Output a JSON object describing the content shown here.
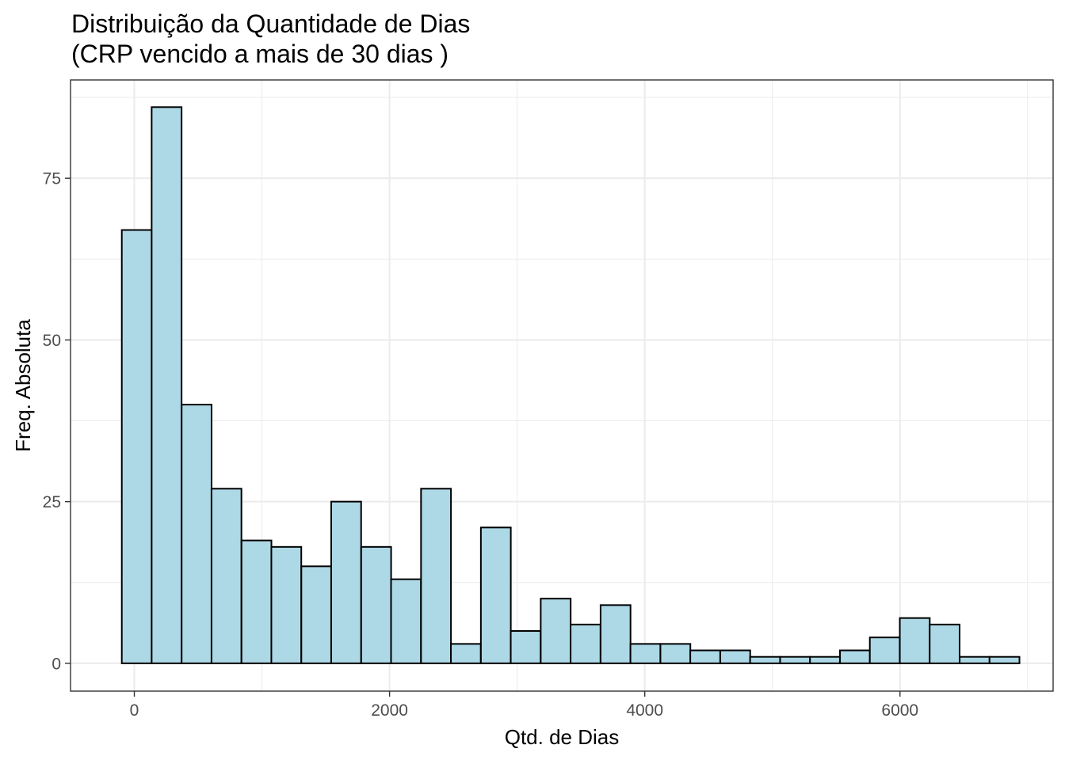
{
  "chart_data": {
    "type": "bar",
    "title": "Distribuição da Quantidade de Dias",
    "subtitle": "(CRP vencido a mais de 30 dias )",
    "xlabel": "Qtd. de Dias",
    "ylabel": "Freq. Absoluta",
    "xlim": [
      -500,
      7200
    ],
    "ylim": [
      -4.3,
      90.2
    ],
    "x_ticks": [
      0,
      2000,
      4000,
      6000
    ],
    "x_tick_labels": [
      "0",
      "2000",
      "4000",
      "6000"
    ],
    "y_ticks": [
      0,
      25,
      50,
      75
    ],
    "y_tick_labels": [
      "0",
      "25",
      "50",
      "75"
    ],
    "x_minor_ticks": [
      1000,
      3000,
      5000,
      7000
    ],
    "y_minor_ticks": [
      12.5,
      37.5,
      62.5,
      87.5
    ],
    "bin_width": 234.5,
    "bin_centers": [
      19,
      253,
      488,
      722,
      957,
      1191,
      1426,
      1660,
      1895,
      2129,
      2364,
      2598,
      2833,
      3067,
      3302,
      3536,
      3771,
      4005,
      4240,
      4474,
      4709,
      4943,
      5178,
      5412,
      5647,
      5881,
      6116,
      6350,
      6585,
      6819
    ],
    "values": [
      67,
      86,
      40,
      27,
      19,
      18,
      15,
      25,
      18,
      13,
      27,
      3,
      21,
      5,
      10,
      6,
      9,
      3,
      3,
      2,
      2,
      1,
      1,
      1,
      2,
      4,
      7,
      6,
      1,
      1
    ],
    "bar_color": "#add8e6",
    "bar_outline": "#000000",
    "grid": true,
    "legend": "none"
  }
}
